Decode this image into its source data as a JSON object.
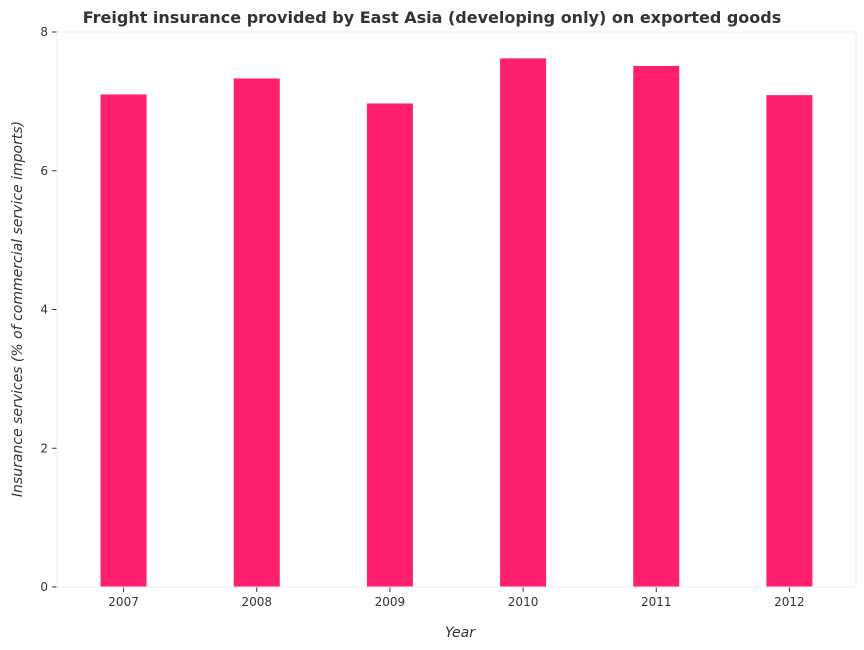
{
  "chart_data": {
    "type": "bar",
    "title": "Freight insurance provided by East Asia (developing only) on exported goods",
    "xlabel": "Year",
    "ylabel": "Insurance services (% of commercial service imports)",
    "categories": [
      "2007",
      "2008",
      "2009",
      "2010",
      "2011",
      "2012"
    ],
    "values": [
      7.1,
      7.33,
      6.97,
      7.62,
      7.51,
      7.09
    ],
    "ylim": [
      0,
      8
    ],
    "yticks": [
      "0",
      "2",
      "4",
      "6",
      "8"
    ],
    "grid": false,
    "bar_color": "#ff1f6f"
  }
}
